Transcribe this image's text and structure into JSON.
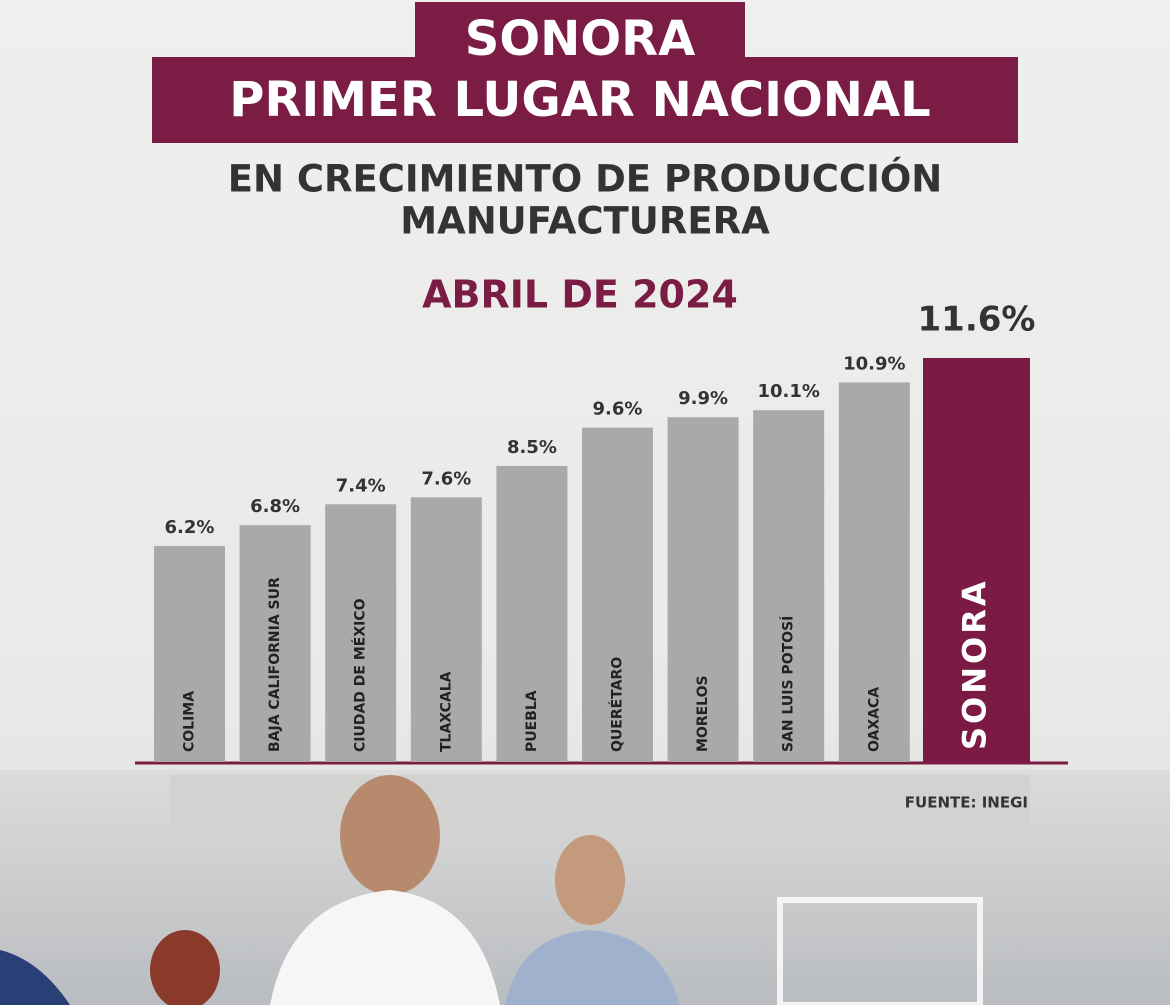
{
  "chart_data": {
    "type": "bar",
    "title": [
      "SONORA",
      "PRIMER LUGAR NACIONAL"
    ],
    "subtitle": [
      "EN CRECIMIENTO DE PRODUCCIÓN",
      "MANUFACTURERA"
    ],
    "period": "ABRIL DE 2024",
    "source": "FUENTE: INEGI",
    "categories": [
      "COLIMA",
      "BAJA CALIFORNIA SUR",
      "CIUDAD DE MÉXICO",
      "TLAXCALA",
      "PUEBLA",
      "QUERÉTARO",
      "MORELOS",
      "SAN LUIS POTOSÍ",
      "OAXACA",
      "SONORA"
    ],
    "values": [
      6.2,
      6.8,
      7.4,
      7.6,
      8.5,
      9.6,
      9.9,
      10.1,
      10.9,
      11.6
    ],
    "value_labels": [
      "6.2%",
      "6.8%",
      "7.4%",
      "7.6%",
      "8.5%",
      "9.6%",
      "9.9%",
      "10.1%",
      "10.9%",
      "11.6%"
    ],
    "colors": [
      "#a9a9a9",
      "#a9a9a9",
      "#a9a9a9",
      "#a9a9a9",
      "#a9a9a9",
      "#a9a9a9",
      "#a9a9a9",
      "#a9a9a9",
      "#a9a9a9",
      "#7a1a45"
    ]
  }
}
